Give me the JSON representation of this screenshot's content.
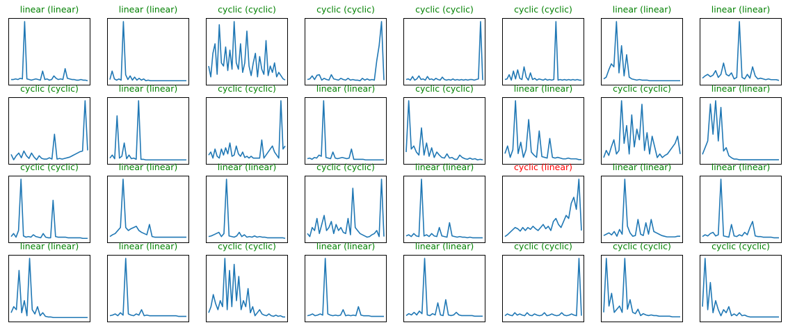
{
  "colors": {
    "line": "#1f77b4",
    "correct_title": "#008000",
    "wrong_title": "#ff0000",
    "frame": "#000000"
  },
  "chart_data": [
    {
      "type": "line",
      "title": "linear (linear)",
      "title_color": "#008000",
      "values": [
        0.04,
        0.04,
        0.05,
        0.04,
        0.06,
        0.05,
        1.0,
        0.05,
        0.04,
        0.03,
        0.04,
        0.05,
        0.04,
        0.03,
        0.18,
        0.04,
        0.05,
        0.03,
        0.04,
        0.1,
        0.06,
        0.04,
        0.05,
        0.04,
        0.22,
        0.06,
        0.05,
        0.04,
        0.04,
        0.03,
        0.03,
        0.04,
        0.03,
        0.03,
        0.02
      ]
    },
    {
      "type": "line",
      "title": "linear (linear)",
      "title_color": "#008000",
      "values": [
        0.04,
        0.18,
        0.05,
        0.03,
        0.05,
        0.03,
        1.0,
        0.12,
        0.04,
        0.1,
        0.03,
        0.08,
        0.03,
        0.06,
        0.03,
        0.05,
        0.02,
        0.03,
        0.02,
        0.02,
        0.02,
        0.02,
        0.02,
        0.02,
        0.02,
        0.02,
        0.02,
        0.02,
        0.02,
        0.02,
        0.02,
        0.02,
        0.02,
        0.02,
        0.02
      ]
    },
    {
      "type": "line",
      "title": "cyclic (cyclic)",
      "title_color": "#008000",
      "values": [
        0.25,
        0.08,
        0.45,
        0.6,
        0.12,
        0.9,
        0.3,
        0.25,
        0.55,
        0.18,
        0.5,
        0.2,
        0.95,
        0.3,
        0.2,
        0.6,
        0.15,
        0.3,
        0.8,
        0.25,
        0.1,
        0.3,
        0.45,
        0.08,
        0.4,
        0.2,
        0.12,
        0.65,
        0.1,
        0.25,
        0.15,
        0.3,
        0.08,
        0.15,
        0.1,
        0.05,
        0.03
      ]
    },
    {
      "type": "line",
      "title": "cyclic (cyclic)",
      "title_color": "#008000",
      "values": [
        0.04,
        0.05,
        0.1,
        0.04,
        0.11,
        0.12,
        0.03,
        0.06,
        0.04,
        0.03,
        0.12,
        0.05,
        0.04,
        0.03,
        0.06,
        0.04,
        0.03,
        0.06,
        0.03,
        0.04,
        0.03,
        0.03,
        0.02,
        0.06,
        0.03,
        0.05,
        0.03,
        0.04,
        0.03,
        0.35,
        0.6,
        1.0,
        0.03
      ]
    },
    {
      "type": "line",
      "title": "cyclic (cyclic)",
      "title_color": "#008000",
      "values": [
        0.04,
        0.05,
        0.03,
        0.09,
        0.03,
        0.05,
        0.1,
        0.04,
        0.05,
        0.03,
        0.09,
        0.04,
        0.05,
        0.03,
        0.06,
        0.04,
        0.03,
        0.08,
        0.04,
        0.03,
        0.04,
        0.03,
        0.05,
        0.03,
        0.04,
        0.03,
        0.04,
        0.03,
        0.04,
        0.03,
        0.04,
        0.04,
        0.03,
        0.04,
        0.05,
        1.0,
        0.03
      ]
    },
    {
      "type": "line",
      "title": "cyclic (cyclic)",
      "title_color": "#008000",
      "values": [
        0.04,
        0.05,
        0.12,
        0.03,
        0.18,
        0.05,
        0.2,
        0.06,
        0.04,
        0.25,
        0.08,
        0.03,
        0.15,
        0.04,
        0.06,
        0.03,
        0.05,
        0.04,
        0.03,
        0.05,
        0.03,
        0.04,
        0.03,
        0.04,
        1.0,
        0.03,
        0.04,
        0.03,
        0.04,
        0.03,
        0.04,
        0.03,
        0.04,
        0.03,
        0.04,
        0.03,
        0.03
      ]
    },
    {
      "type": "line",
      "title": "linear (linear)",
      "title_color": "#008000",
      "values": [
        0.05,
        0.08,
        0.2,
        0.3,
        0.25,
        1.0,
        0.15,
        0.6,
        0.1,
        0.45,
        0.08,
        0.05,
        0.04,
        0.03,
        0.04,
        0.03,
        0.03,
        0.03,
        0.02,
        0.02,
        0.02,
        0.02,
        0.02,
        0.02,
        0.02,
        0.02,
        0.02,
        0.02,
        0.02,
        0.02,
        0.02
      ]
    },
    {
      "type": "line",
      "title": "linear (linear)",
      "title_color": "#008000",
      "values": [
        0.05,
        0.08,
        0.1,
        0.07,
        0.09,
        0.15,
        0.06,
        0.1,
        0.25,
        0.1,
        0.08,
        0.12,
        0.04,
        0.06,
        0.8,
        0.06,
        0.04,
        0.1,
        0.05,
        0.2,
        0.08,
        0.04,
        0.05,
        0.04,
        0.03,
        0.04,
        0.03,
        0.03,
        0.03,
        0.02
      ]
    },
    {
      "type": "line",
      "title": "cyclic (cyclic)",
      "title_color": "#008000",
      "values": [
        0.1,
        0.02,
        0.08,
        0.12,
        0.05,
        0.15,
        0.08,
        0.04,
        0.12,
        0.06,
        0.02,
        0.08,
        0.04,
        0.03,
        0.03,
        0.05,
        0.03,
        0.4,
        0.03,
        0.04,
        0.03,
        0.04,
        0.05,
        0.06,
        0.08,
        0.1,
        0.12,
        0.14,
        0.15,
        0.9,
        0.16
      ]
    },
    {
      "type": "line",
      "title": "linear (linear)",
      "title_color": "#008000",
      "values": [
        0.05,
        0.1,
        0.04,
        0.75,
        0.05,
        0.08,
        0.3,
        0.04,
        0.1,
        0.04,
        0.05,
        0.03,
        1.0,
        0.03,
        0.03,
        0.02,
        0.02,
        0.02,
        0.02,
        0.02,
        0.02,
        0.02,
        0.02,
        0.02,
        0.02,
        0.02,
        0.02,
        0.02,
        0.02,
        0.02,
        0.02,
        0.02,
        0.02
      ]
    },
    {
      "type": "line",
      "title": "cyclic (cyclic)",
      "title_color": "#008000",
      "values": [
        0.1,
        0.15,
        0.05,
        0.2,
        0.08,
        0.05,
        0.2,
        0.1,
        0.22,
        0.12,
        0.3,
        0.08,
        0.1,
        0.25,
        0.12,
        0.08,
        0.15,
        0.06,
        0.08,
        0.05,
        0.08,
        0.05,
        0.05,
        0.05,
        0.05,
        0.35,
        0.05,
        0.1,
        0.15,
        0.2,
        0.25,
        0.15,
        0.1,
        0.05,
        1.0,
        0.2,
        0.25
      ]
    },
    {
      "type": "line",
      "title": "linear (linear)",
      "title_color": "#008000",
      "values": [
        0.04,
        0.05,
        0.03,
        0.06,
        0.05,
        0.1,
        0.08,
        1.0,
        0.06,
        0.05,
        0.04,
        0.15,
        0.05,
        0.04,
        0.05,
        0.06,
        0.05,
        0.04,
        0.05,
        0.2,
        0.03,
        0.03,
        0.03,
        0.03,
        0.03,
        0.02,
        0.02,
        0.02,
        0.02,
        0.02,
        0.02,
        0.02,
        0.02,
        0.02
      ]
    },
    {
      "type": "line",
      "title": "cyclic (cyclic)",
      "title_color": "#008000",
      "values": [
        0.15,
        1.0,
        0.2,
        0.25,
        0.15,
        0.1,
        0.55,
        0.1,
        0.3,
        0.08,
        0.22,
        0.06,
        0.15,
        0.1,
        0.06,
        0.05,
        0.12,
        0.05,
        0.06,
        0.03,
        0.03,
        0.1,
        0.06,
        0.04,
        0.03,
        0.05,
        0.03,
        0.04,
        0.02,
        0.03,
        0.02
      ]
    },
    {
      "type": "line",
      "title": "linear (linear)",
      "title_color": "#008000",
      "values": [
        0.1,
        0.2,
        0.05,
        0.15,
        0.8,
        0.1,
        0.25,
        0.05,
        0.15,
        0.55,
        0.12,
        0.08,
        0.05,
        0.4,
        0.06,
        0.05,
        0.04,
        0.3,
        0.05,
        0.04,
        0.05,
        0.04,
        0.03,
        0.03,
        0.04,
        0.03,
        0.03,
        0.03,
        0.02,
        0.02
      ]
    },
    {
      "type": "line",
      "title": "cyclic (cyclic)",
      "title_color": "#008000",
      "values": [
        0.05,
        0.15,
        0.08,
        0.2,
        0.3,
        0.1,
        0.15,
        0.85,
        0.25,
        0.5,
        0.1,
        0.65,
        0.2,
        0.45,
        0.3,
        0.8,
        0.15,
        0.4,
        0.1,
        0.35,
        0.2,
        0.05,
        0.1,
        0.05,
        0.08,
        0.1,
        0.15,
        0.2,
        0.25,
        0.35,
        0.1
      ]
    },
    {
      "type": "line",
      "title": "linear (linear)",
      "title_color": "#008000",
      "values": [
        0.1,
        0.2,
        0.3,
        0.85,
        0.4,
        0.9,
        0.3,
        0.8,
        0.15,
        0.2,
        0.08,
        0.05,
        0.03,
        0.03,
        0.02,
        0.02,
        0.02,
        0.02,
        0.02,
        0.02,
        0.02,
        0.02,
        0.02,
        0.02,
        0.02,
        0.02,
        0.02,
        0.02,
        0.02,
        0.02
      ]
    },
    {
      "type": "line",
      "title": "cyclic (cyclic)",
      "title_color": "#008000",
      "values": [
        0.05,
        0.1,
        0.04,
        0.15,
        1.0,
        0.06,
        0.04,
        0.05,
        0.04,
        0.08,
        0.05,
        0.04,
        0.03,
        0.1,
        0.04,
        0.03,
        0.03,
        0.65,
        0.05,
        0.04,
        0.04,
        0.04,
        0.04,
        0.03,
        0.03,
        0.03,
        0.03,
        0.03,
        0.03,
        0.02,
        0.02,
        0.02
      ]
    },
    {
      "type": "line",
      "title": "linear (linear)",
      "title_color": "#008000",
      "values": [
        0.05,
        0.08,
        0.1,
        0.15,
        0.2,
        1.0,
        0.2,
        0.15,
        0.18,
        0.2,
        0.22,
        0.15,
        0.12,
        0.1,
        0.08,
        0.25,
        0.05,
        0.04,
        0.04,
        0.04,
        0.04,
        0.04,
        0.04,
        0.04,
        0.04,
        0.04,
        0.04,
        0.04,
        0.04,
        0.04
      ]
    },
    {
      "type": "line",
      "title": "linear (linear)",
      "title_color": "#008000",
      "values": [
        0.05,
        0.06,
        0.08,
        0.1,
        0.12,
        0.05,
        0.1,
        1.0,
        0.06,
        0.05,
        0.04,
        0.06,
        0.12,
        0.05,
        0.08,
        0.04,
        0.05,
        0.04,
        0.06,
        0.04,
        0.05,
        0.04,
        0.04,
        0.03,
        0.03,
        0.03,
        0.03,
        0.03,
        0.03,
        0.03,
        0.02
      ]
    },
    {
      "type": "line",
      "title": "cyclic (cyclic)",
      "title_color": "#008000",
      "values": [
        0.1,
        0.05,
        0.2,
        0.15,
        0.35,
        0.1,
        0.25,
        0.4,
        0.15,
        0.2,
        0.3,
        0.1,
        0.25,
        0.15,
        0.2,
        0.12,
        0.1,
        0.35,
        0.08,
        0.85,
        0.2,
        0.15,
        0.1,
        0.08,
        0.06,
        0.04,
        0.05,
        0.08,
        0.1,
        0.15,
        0.05,
        1.0,
        0.05
      ]
    },
    {
      "type": "line",
      "title": "linear (linear)",
      "title_color": "#008000",
      "values": [
        0.06,
        0.08,
        0.05,
        0.1,
        0.06,
        0.05,
        1.0,
        0.06,
        0.08,
        0.05,
        0.1,
        0.06,
        0.05,
        0.2,
        0.06,
        0.05,
        0.04,
        0.28,
        0.06,
        0.05,
        0.04,
        0.05,
        0.04,
        0.04,
        0.03,
        0.04,
        0.03,
        0.03,
        0.03,
        0.03,
        0.03
      ]
    },
    {
      "type": "line",
      "title": "cyclic (linear)",
      "title_color": "#ff0000",
      "values": [
        0.05,
        0.08,
        0.12,
        0.16,
        0.2,
        0.18,
        0.14,
        0.2,
        0.15,
        0.2,
        0.17,
        0.22,
        0.18,
        0.15,
        0.2,
        0.25,
        0.18,
        0.22,
        0.15,
        0.3,
        0.35,
        0.25,
        0.2,
        0.3,
        0.4,
        0.35,
        0.6,
        0.7,
        0.5,
        1.0,
        0.15
      ]
    },
    {
      "type": "line",
      "title": "linear (linear)",
      "title_color": "#008000",
      "values": [
        0.06,
        0.08,
        0.1,
        0.07,
        0.12,
        0.05,
        0.15,
        0.08,
        0.9,
        0.2,
        0.1,
        0.05,
        0.06,
        0.3,
        0.08,
        0.06,
        0.25,
        0.08,
        0.3,
        0.12,
        0.1,
        0.08,
        0.06,
        0.05,
        0.04,
        0.04,
        0.04,
        0.04,
        0.05,
        0.05
      ]
    },
    {
      "type": "line",
      "title": "linear (linear)",
      "title_color": "#008000",
      "values": [
        0.05,
        0.08,
        0.06,
        0.1,
        0.12,
        0.06,
        0.08,
        1.0,
        0.06,
        0.05,
        0.04,
        0.25,
        0.06,
        0.05,
        0.08,
        0.06,
        0.12,
        0.08,
        0.2,
        0.3,
        0.06,
        0.05,
        0.05,
        0.04,
        0.04,
        0.04,
        0.04,
        0.03,
        0.03,
        0.03
      ]
    },
    {
      "type": "line",
      "title": "linear (linear)",
      "title_color": "#008000",
      "values": [
        0.1,
        0.2,
        0.15,
        0.8,
        0.1,
        0.3,
        0.05,
        1.0,
        0.15,
        0.08,
        0.2,
        0.05,
        0.1,
        0.04,
        0.03,
        0.03,
        0.02,
        0.02,
        0.02,
        0.02,
        0.02,
        0.02,
        0.02,
        0.02,
        0.02,
        0.02,
        0.02,
        0.02,
        0.02,
        0.02
      ]
    },
    {
      "type": "line",
      "title": "linear (linear)",
      "title_color": "#008000",
      "values": [
        0.05,
        0.06,
        0.08,
        0.05,
        0.1,
        0.06,
        1.0,
        0.08,
        0.06,
        0.05,
        0.08,
        0.06,
        0.15,
        0.05,
        0.06,
        0.05,
        0.05,
        0.05,
        0.05,
        0.05,
        0.05,
        0.05,
        0.05,
        0.05,
        0.05,
        0.05,
        0.04,
        0.04,
        0.04,
        0.04
      ]
    },
    {
      "type": "line",
      "title": "cyclic (cyclic)",
      "title_color": "#008000",
      "values": [
        0.1,
        0.2,
        0.4,
        0.25,
        0.15,
        0.3,
        0.2,
        1.0,
        0.15,
        0.8,
        0.2,
        0.9,
        0.3,
        0.7,
        0.15,
        0.3,
        0.2,
        0.5,
        0.1,
        0.2,
        0.05,
        0.1,
        0.15,
        0.08,
        0.06,
        0.05,
        0.08,
        0.05,
        0.04,
        0.06,
        0.04,
        0.05,
        0.03,
        0.03
      ]
    },
    {
      "type": "line",
      "title": "linear (linear)",
      "title_color": "#008000",
      "values": [
        0.05,
        0.06,
        0.08,
        0.05,
        0.06,
        0.08,
        0.06,
        1.0,
        0.08,
        0.06,
        0.05,
        0.06,
        0.05,
        0.06,
        0.15,
        0.05,
        0.06,
        0.05,
        0.06,
        0.05,
        0.2,
        0.06,
        0.05,
        0.05,
        0.05,
        0.04,
        0.04,
        0.04,
        0.04,
        0.04,
        0.04
      ]
    },
    {
      "type": "line",
      "title": "linear (linear)",
      "title_color": "#008000",
      "values": [
        0.05,
        0.08,
        0.06,
        0.1,
        0.06,
        0.12,
        0.08,
        0.95,
        0.06,
        0.05,
        0.08,
        0.06,
        0.25,
        0.06,
        0.05,
        0.3,
        0.06,
        0.05,
        0.06,
        0.1,
        0.06,
        0.05,
        0.05,
        0.05,
        0.05,
        0.05,
        0.04,
        0.04,
        0.04,
        0.04
      ]
    },
    {
      "type": "line",
      "title": "cyclic (cyclic)",
      "title_color": "#008000",
      "values": [
        0.05,
        0.08,
        0.06,
        0.05,
        0.1,
        0.06,
        0.08,
        0.06,
        0.05,
        0.1,
        0.06,
        0.05,
        0.08,
        0.06,
        0.05,
        0.06,
        0.1,
        0.05,
        0.06,
        0.08,
        0.06,
        0.05,
        0.06,
        0.1,
        0.06,
        0.05,
        0.06,
        0.08,
        0.06,
        0.05,
        1.0,
        0.05
      ]
    },
    {
      "type": "line",
      "title": "cyclic (cyclic)",
      "title_color": "#008000",
      "values": [
        0.1,
        0.95,
        0.2,
        0.4,
        0.1,
        0.15,
        0.2,
        0.1,
        0.95,
        0.15,
        0.3,
        0.1,
        0.08,
        0.15,
        0.05,
        0.08,
        0.06,
        0.05,
        0.06,
        0.05,
        0.05,
        0.04,
        0.04,
        0.04,
        0.04,
        0.04,
        0.03,
        0.03,
        0.03,
        0.03
      ]
    },
    {
      "type": "line",
      "title": "cyclic (cyclic)",
      "title_color": "#008000",
      "values": [
        0.2,
        1.0,
        0.15,
        0.6,
        0.1,
        0.3,
        0.15,
        0.05,
        0.15,
        0.1,
        0.2,
        0.05,
        0.08,
        0.05,
        0.1,
        0.05,
        0.06,
        0.04,
        0.03,
        0.03,
        0.03,
        0.03,
        0.03,
        0.03,
        0.03,
        0.03,
        0.03,
        0.03,
        0.03,
        0.03
      ]
    }
  ]
}
